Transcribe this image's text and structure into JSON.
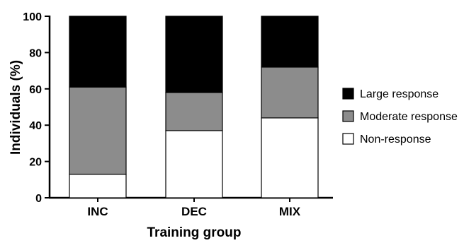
{
  "chart_data": {
    "type": "bar",
    "stacked": true,
    "categories": [
      "INC",
      "DEC",
      "MIX"
    ],
    "series": [
      {
        "name": "Non-response",
        "values": [
          13,
          37,
          44
        ],
        "color": "#ffffff"
      },
      {
        "name": "Moderate response",
        "values": [
          48,
          21,
          28
        ],
        "color": "#8c8c8c"
      },
      {
        "name": "Large response",
        "values": [
          39,
          42,
          28
        ],
        "color": "#000000"
      }
    ],
    "legend_order": [
      "Large response",
      "Moderate response",
      "Non-response"
    ],
    "xlabel": "Training group",
    "ylabel": "Individuals (%)",
    "ylim": [
      0,
      100
    ],
    "yticks": [
      "0",
      "20",
      "40",
      "60",
      "80",
      "100"
    ],
    "grid": false,
    "legend_position": "right"
  }
}
